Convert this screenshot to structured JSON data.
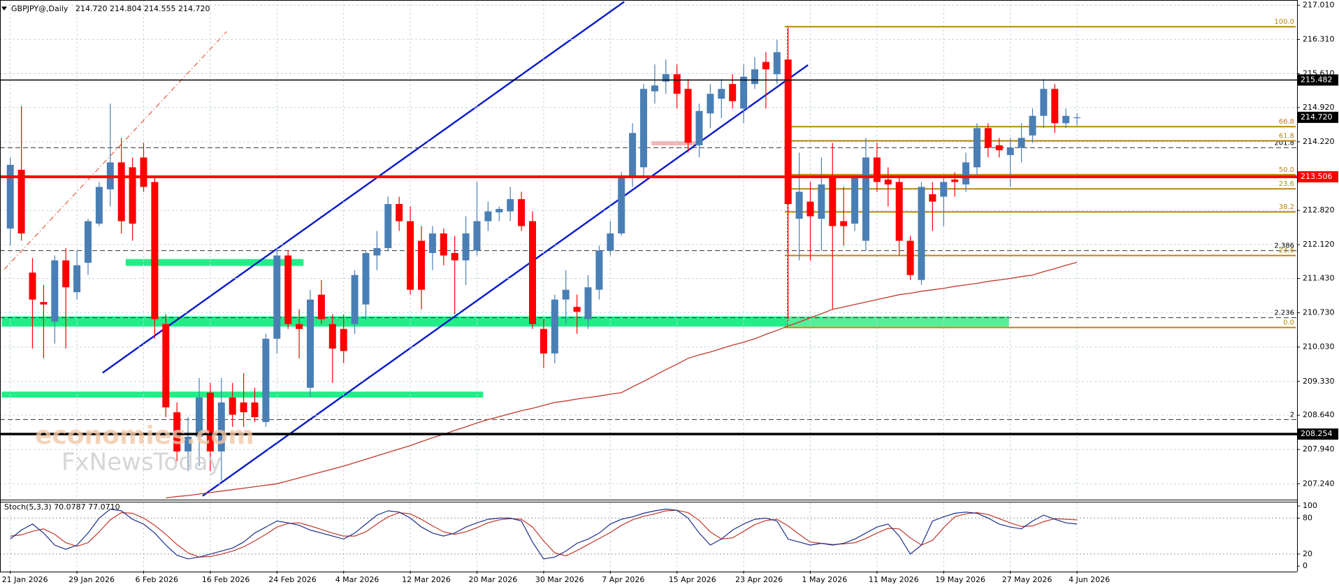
{
  "chart_data": {
    "type": "candlestick",
    "title": "GBPJPY@,Daily",
    "ohlc_label": "214.720 214.804 214.555 214.720",
    "watermark": [
      "economies.com",
      "FxNewsToday"
    ],
    "categories": [
      "21 Jan 2026",
      null,
      null,
      null,
      null,
      null,
      "29 Jan 2026",
      null,
      null,
      null,
      null,
      null,
      "6 Feb 2026",
      null,
      null,
      null,
      null,
      null,
      "16 Feb 2026",
      null,
      null,
      null,
      null,
      null,
      "24 Feb 2026",
      null,
      null,
      null,
      null,
      null,
      "4 Mar 2026",
      null,
      null,
      null,
      null,
      null,
      "12 Mar 2026",
      null,
      null,
      null,
      null,
      null,
      "20 Mar 2026",
      null,
      null,
      null,
      null,
      null,
      "30 Mar 2026",
      null,
      null,
      null,
      null,
      null,
      "7 Apr 2026",
      null,
      null,
      null,
      null,
      null,
      "15 Apr 2026",
      null,
      null,
      null,
      null,
      null,
      "23 Apr 2026",
      null,
      null,
      null,
      null,
      null,
      "1 May 2026",
      null,
      null,
      null,
      null,
      null,
      "11 May 2026",
      null,
      null,
      null,
      null,
      null,
      "19 May 2026",
      null,
      null,
      null,
      null,
      null,
      "27 May 2026",
      null,
      null,
      null,
      null,
      null,
      "4 Jun 2026"
    ],
    "open": [
      212.45,
      213.65,
      211.55,
      210.95,
      210.55,
      211.8,
      211.15,
      211.75,
      212.55,
      213.25,
      213.8,
      213.7,
      213.9,
      213.4,
      210.5,
      208.7,
      207.9,
      208.2,
      209.1,
      207.9,
      209.0,
      208.9,
      208.9,
      208.5,
      210.2,
      211.9,
      210.5,
      209.2,
      211.1,
      210.5,
      210.4,
      210.5,
      210.9,
      211.9,
      212.05,
      212.95,
      212.6,
      212.2,
      211.95,
      212.35,
      211.95,
      211.8,
      212.0,
      212.6,
      212.78,
      212.8,
      213.05,
      212.6,
      210.4,
      209.9,
      211.0,
      210.85,
      210.6,
      211.2,
      212.0,
      212.35,
      213.5,
      213.7,
      215.25,
      215.45,
      215.6,
      215.3,
      214.15,
      214.8,
      215.1,
      215.4,
      214.9,
      215.4,
      215.85,
      215.6,
      215.9,
      212.65,
      213.0,
      212.65,
      213.5,
      212.6,
      212.55,
      212.2,
      213.9,
      213.45,
      213.4,
      212.2,
      211.4,
      213.15,
      213.1,
      213.45,
      213.35,
      213.7,
      214.5,
      214.15,
      213.95,
      214.1,
      214.35,
      214.75,
      215.3,
      214.6,
      214.72
    ],
    "high": [
      213.9,
      214.95,
      211.85,
      211.3,
      211.9,
      212.05,
      212.0,
      212.65,
      213.4,
      215.0,
      214.3,
      213.9,
      214.2,
      213.5,
      210.7,
      208.9,
      208.6,
      209.4,
      209.3,
      209.4,
      209.3,
      209.5,
      209.2,
      210.3,
      212.0,
      212.0,
      210.8,
      211.2,
      211.4,
      210.7,
      210.7,
      211.6,
      212.0,
      212.4,
      213.1,
      213.1,
      212.9,
      212.5,
      212.5,
      212.45,
      212.3,
      212.7,
      213.4,
      213.0,
      212.9,
      213.3,
      213.2,
      212.8,
      210.6,
      211.1,
      211.6,
      211.1,
      211.5,
      212.1,
      212.6,
      213.6,
      214.6,
      215.4,
      215.8,
      215.9,
      215.8,
      215.5,
      215.0,
      215.4,
      215.5,
      215.6,
      215.8,
      215.95,
      216.05,
      216.3,
      216.55,
      214.0,
      213.4,
      213.9,
      214.2,
      213.3,
      213.5,
      214.3,
      214.2,
      213.7,
      213.5,
      212.3,
      213.4,
      213.4,
      213.5,
      213.6,
      214.0,
      214.6,
      214.6,
      214.3,
      214.3,
      214.6,
      214.9,
      215.5,
      215.4,
      214.9,
      214.804
    ],
    "low": [
      212.1,
      212.2,
      210.0,
      209.8,
      210.1,
      210.0,
      211.0,
      211.5,
      212.5,
      212.9,
      212.35,
      212.2,
      213.2,
      210.2,
      208.6,
      207.7,
      207.5,
      207.6,
      207.5,
      207.3,
      208.4,
      208.4,
      208.5,
      208.4,
      209.9,
      210.4,
      209.8,
      209.0,
      210.5,
      209.3,
      209.7,
      210.3,
      210.6,
      211.6,
      212.0,
      212.4,
      211.1,
      210.8,
      211.6,
      211.7,
      210.7,
      211.3,
      211.9,
      212.4,
      212.6,
      212.6,
      212.4,
      210.4,
      209.6,
      209.7,
      210.5,
      210.3,
      210.4,
      211.0,
      211.9,
      212.3,
      213.3,
      213.5,
      215.0,
      215.2,
      214.9,
      214.0,
      213.9,
      214.5,
      214.7,
      214.9,
      214.6,
      215.3,
      214.9,
      215.4,
      210.6,
      211.8,
      211.8,
      212.0,
      210.8,
      212.1,
      212.4,
      212.0,
      213.2,
      212.9,
      211.9,
      211.4,
      211.3,
      212.4,
      212.5,
      213.1,
      213.2,
      213.5,
      213.9,
      213.9,
      213.3,
      213.8,
      214.2,
      214.5,
      214.4,
      214.5,
      214.555
    ],
    "close": [
      213.75,
      212.35,
      211.0,
      210.9,
      211.8,
      211.25,
      211.7,
      212.6,
      213.3,
      213.8,
      212.6,
      212.55,
      213.3,
      210.6,
      208.8,
      207.9,
      208.2,
      209.0,
      207.9,
      208.9,
      208.65,
      208.7,
      208.6,
      210.2,
      211.9,
      210.5,
      210.4,
      211.0,
      210.6,
      210.0,
      209.95,
      211.5,
      211.95,
      212.05,
      212.95,
      212.6,
      211.2,
      211.2,
      212.35,
      211.9,
      211.8,
      212.35,
      212.6,
      212.8,
      212.85,
      213.05,
      212.5,
      210.5,
      209.9,
      211.0,
      211.2,
      210.75,
      211.25,
      212.0,
      212.35,
      213.5,
      214.4,
      215.3,
      215.37,
      215.6,
      215.2,
      214.2,
      214.85,
      215.2,
      215.3,
      215.05,
      215.55,
      215.7,
      215.7,
      216.05,
      212.95,
      213.2,
      212.7,
      213.35,
      212.5,
      212.5,
      213.5,
      213.9,
      213.4,
      213.35,
      212.2,
      211.5,
      213.3,
      213.0,
      213.4,
      213.4,
      213.8,
      214.5,
      214.1,
      214.05,
      214.1,
      214.3,
      214.75,
      215.3,
      214.6,
      214.75,
      214.72
    ],
    "up_color": "#4a7fb5",
    "down_color": "#ff0000",
    "ma": {
      "color": "#c0392b",
      "values": [
        null,
        null,
        null,
        null,
        null,
        null,
        null,
        null,
        null,
        null,
        null,
        null,
        null,
        null,
        206.95,
        206.98,
        207.0,
        207.03,
        207.06,
        207.09,
        207.12,
        207.15,
        207.18,
        207.21,
        207.24,
        207.3,
        207.36,
        207.42,
        207.48,
        207.54,
        207.6,
        207.67,
        207.74,
        207.81,
        207.88,
        207.95,
        208.02,
        208.1,
        208.18,
        208.25,
        208.33,
        208.4,
        208.48,
        208.55,
        208.61,
        208.67,
        208.73,
        208.78,
        208.84,
        208.9,
        208.93,
        208.97,
        209.0,
        209.03,
        209.07,
        209.1,
        209.22,
        209.33,
        209.45,
        209.57,
        209.68,
        209.8,
        209.87,
        209.93,
        210.0,
        210.07,
        210.13,
        210.2,
        210.29,
        210.37,
        210.46,
        210.54,
        210.63,
        210.71,
        210.8,
        210.85,
        210.9,
        210.95,
        211.0,
        211.05,
        211.1,
        211.13,
        211.17,
        211.2,
        211.23,
        211.27,
        211.3,
        211.33,
        211.37,
        211.4,
        211.43,
        211.47,
        211.5,
        211.57,
        211.63,
        211.7,
        211.76
      ]
    },
    "ylim": [
      206.93,
      217.115
    ],
    "yticks": [
      {
        "value": 217.01,
        "label": "217.010"
      },
      {
        "value": 216.31,
        "label": "216.310"
      },
      {
        "value": 215.61,
        "label": "215.610"
      },
      {
        "value": 214.92,
        "label": "214.920"
      },
      {
        "value": 214.22,
        "label": "214.220"
      },
      {
        "value": 212.82,
        "label": "212.820"
      },
      {
        "value": 212.12,
        "label": "212.120"
      },
      {
        "value": 211.43,
        "label": "211.430"
      },
      {
        "value": 210.73,
        "label": "210.730"
      },
      {
        "value": 210.03,
        "label": "210.030"
      },
      {
        "value": 209.33,
        "label": "209.330"
      },
      {
        "value": 208.64,
        "label": "208.640"
      },
      {
        "value": 207.94,
        "label": "207.940"
      },
      {
        "value": 207.24,
        "label": "207.240"
      }
    ],
    "grid": true,
    "levels": [
      {
        "value": 215.482,
        "color": "#000000",
        "width": 1.5
      },
      {
        "value": 213.506,
        "color": "#ff0000",
        "width": 4
      },
      {
        "value": 208.254,
        "color": "#000000",
        "width": 3.5
      },
      {
        "value": 214.72,
        "label": "214.720",
        "color": "#000000",
        "width": 0
      }
    ],
    "dashed_levels": [
      {
        "value": 214.1,
        "label": "201.8"
      },
      {
        "value": 212.0,
        "label": "2.386"
      },
      {
        "value": 210.63,
        "label": "2.236"
      },
      {
        "value": 208.55,
        "label": "2"
      }
    ],
    "fib_color": "#b8860b",
    "fib": [
      {
        "value": 216.57,
        "label": "100.0"
      },
      {
        "value": 214.53,
        "label": "66.8"
      },
      {
        "value": 214.24,
        "label": "61.8"
      },
      {
        "value": 213.55,
        "label": "50.0"
      },
      {
        "value": 213.26,
        "label": "23.6"
      },
      {
        "value": 212.79,
        "label": "38.2"
      },
      {
        "value": 211.9,
        "label": "23.6"
      },
      {
        "value": 210.43,
        "label": "0.0"
      }
    ],
    "stochastic": {
      "title": "Stoch(5,3,3) 70.0787 77.0710",
      "ylim": [
        -8,
        106
      ],
      "yticks": [
        100,
        80,
        20,
        0
      ],
      "main": {
        "color": "#1c2e8c",
        "values": [
          45,
          60,
          70,
          55,
          35,
          28,
          35,
          55,
          80,
          95,
          92,
          78,
          70,
          55,
          35,
          18,
          12,
          15,
          20,
          25,
          30,
          40,
          55,
          65,
          75,
          72,
          68,
          60,
          55,
          50,
          45,
          55,
          70,
          85,
          92,
          90,
          80,
          65,
          55,
          50,
          55,
          65,
          72,
          78,
          80,
          80,
          75,
          40,
          12,
          15,
          25,
          38,
          45,
          55,
          70,
          78,
          82,
          88,
          92,
          95,
          93,
          80,
          55,
          35,
          45,
          60,
          70,
          78,
          80,
          75,
          45,
          40,
          35,
          38,
          35,
          38,
          45,
          55,
          65,
          70,
          50,
          20,
          35,
          75,
          82,
          88,
          90,
          88,
          80,
          70,
          65,
          62,
          75,
          85,
          78,
          72,
          70.0787
        ]
      },
      "signal": {
        "color": "#c0392b",
        "values": [
          50,
          52,
          58,
          62,
          53,
          39,
          33,
          39,
          57,
          77,
          89,
          88,
          80,
          68,
          53,
          36,
          22,
          15,
          16,
          20,
          25,
          32,
          42,
          53,
          65,
          71,
          72,
          67,
          61,
          55,
          50,
          50,
          57,
          70,
          82,
          89,
          87,
          78,
          67,
          57,
          53,
          57,
          64,
          72,
          77,
          79,
          78,
          65,
          42,
          22,
          17,
          26,
          36,
          46,
          56,
          68,
          77,
          83,
          87,
          92,
          93,
          89,
          76,
          57,
          45,
          47,
          58,
          69,
          76,
          78,
          67,
          53,
          40,
          38,
          36,
          37,
          39,
          46,
          55,
          63,
          62,
          47,
          35,
          43,
          64,
          82,
          87,
          89,
          86,
          79,
          72,
          66,
          67,
          74,
          79,
          78,
          77.071
        ]
      }
    }
  }
}
